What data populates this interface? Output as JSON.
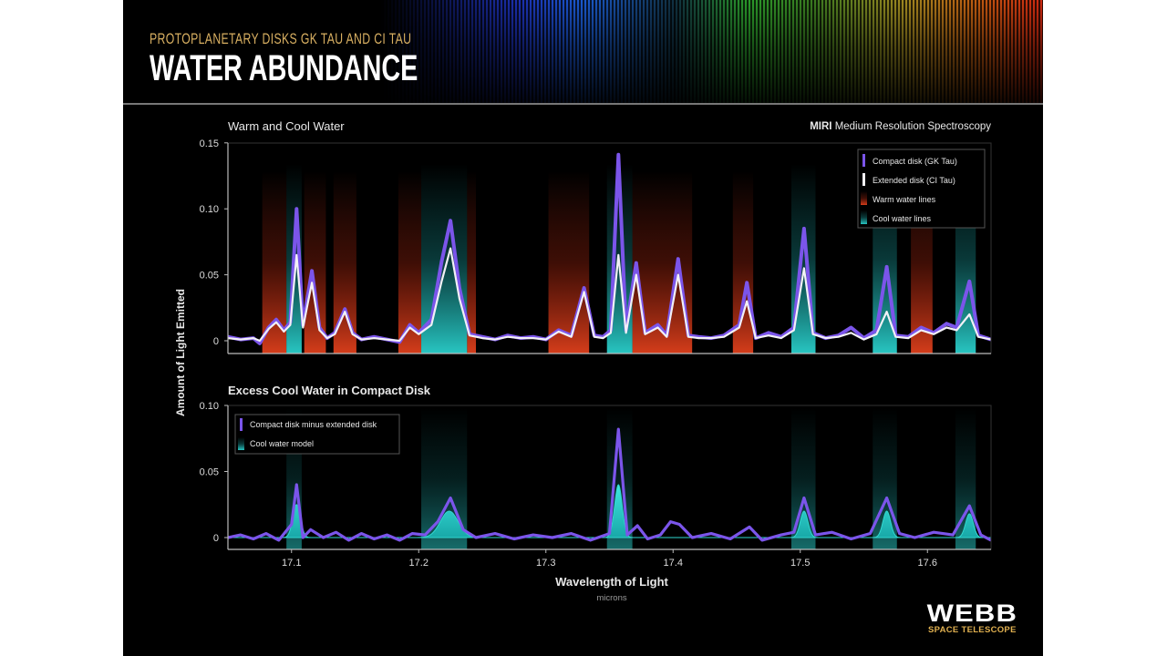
{
  "header": {
    "subtitle": "PROTOPLANETARY DISKS GK TAU AND CI TAU",
    "title": "WATER ABUNDANCE"
  },
  "logo": {
    "name": "WEBB",
    "tagline": "SPACE TELESCOPE"
  },
  "colors": {
    "compact": "#7b55ea",
    "extended": "#f2f0f6",
    "warm": "#d8361a",
    "cool": "#2ad0cc",
    "subtitle": "#d9b062"
  },
  "chart_data": [
    {
      "type": "line",
      "title": "Warm and Cool Water",
      "instrument_bold": "MIRI",
      "instrument_rest": "Medium Resolution Spectroscopy",
      "ylabel": "Amount of Light Emitted",
      "xlim": [
        17.05,
        17.65
      ],
      "ylim": [
        -0.01,
        0.15
      ],
      "yticks": [
        0,
        0.05,
        0.1,
        0.15
      ],
      "ytick_labels": [
        "0",
        "0.05",
        "0.10",
        "0.15"
      ],
      "legend_position": "top-right",
      "legend": [
        "Compact disk (GK Tau)",
        "Extended disk (CI Tau)",
        "Warm water lines",
        "Cool water lines"
      ],
      "warm_bands": [
        [
          17.077,
          17.096
        ],
        [
          17.11,
          17.127
        ],
        [
          17.133,
          17.151
        ],
        [
          17.184,
          17.202
        ],
        [
          17.238,
          17.245
        ],
        [
          17.302,
          17.334
        ],
        [
          17.368,
          17.415
        ],
        [
          17.447,
          17.463
        ],
        [
          17.587,
          17.604
        ]
      ],
      "cool_bands": [
        [
          17.096,
          17.108
        ],
        [
          17.202,
          17.238
        ],
        [
          17.348,
          17.368
        ],
        [
          17.493,
          17.512
        ],
        [
          17.557,
          17.576
        ],
        [
          17.622,
          17.638
        ]
      ],
      "x": [
        17.05,
        17.06,
        17.07,
        17.075,
        17.082,
        17.088,
        17.094,
        17.099,
        17.104,
        17.109,
        17.116,
        17.122,
        17.128,
        17.134,
        17.142,
        17.148,
        17.155,
        17.165,
        17.175,
        17.185,
        17.193,
        17.2,
        17.21,
        17.218,
        17.225,
        17.232,
        17.24,
        17.25,
        17.26,
        17.27,
        17.28,
        17.29,
        17.3,
        17.31,
        17.32,
        17.33,
        17.338,
        17.345,
        17.351,
        17.357,
        17.363,
        17.371,
        17.378,
        17.388,
        17.395,
        17.404,
        17.412,
        17.42,
        17.43,
        17.44,
        17.452,
        17.458,
        17.465,
        17.475,
        17.485,
        17.495,
        17.503,
        17.51,
        17.52,
        17.53,
        17.54,
        17.55,
        17.56,
        17.568,
        17.575,
        17.585,
        17.595,
        17.605,
        17.615,
        17.623,
        17.633,
        17.64,
        17.65
      ],
      "series": [
        {
          "name": "Compact disk (GK Tau)",
          "values": [
            0.003,
            0.001,
            0.002,
            -0.002,
            0.01,
            0.016,
            0.008,
            0.014,
            0.1,
            0.012,
            0.053,
            0.01,
            0.002,
            0.006,
            0.024,
            0.006,
            0.001,
            0.003,
            0.001,
            -0.001,
            0.012,
            0.006,
            0.016,
            0.06,
            0.091,
            0.04,
            0.005,
            0.003,
            0.001,
            0.004,
            0.002,
            0.003,
            0.001,
            0.008,
            0.004,
            0.04,
            0.004,
            0.003,
            0.008,
            0.141,
            0.008,
            0.059,
            0.006,
            0.012,
            0.004,
            0.062,
            0.004,
            0.003,
            0.002,
            0.004,
            0.012,
            0.044,
            0.002,
            0.006,
            0.003,
            0.01,
            0.085,
            0.006,
            0.002,
            0.004,
            0.01,
            0.002,
            0.008,
            0.056,
            0.004,
            0.003,
            0.01,
            0.006,
            0.013,
            0.01,
            0.045,
            0.004,
            0.001
          ]
        },
        {
          "name": "Extended disk (CI Tau)",
          "values": [
            0.002,
            0.001,
            0.002,
            0.0,
            0.009,
            0.014,
            0.007,
            0.012,
            0.065,
            0.01,
            0.044,
            0.008,
            0.002,
            0.005,
            0.022,
            0.005,
            0.001,
            0.002,
            0.001,
            0.0,
            0.01,
            0.005,
            0.012,
            0.045,
            0.07,
            0.032,
            0.004,
            0.002,
            0.001,
            0.003,
            0.002,
            0.002,
            0.001,
            0.007,
            0.003,
            0.037,
            0.003,
            0.002,
            0.006,
            0.065,
            0.006,
            0.05,
            0.005,
            0.01,
            0.003,
            0.05,
            0.003,
            0.002,
            0.002,
            0.003,
            0.01,
            0.03,
            0.002,
            0.004,
            0.002,
            0.008,
            0.055,
            0.005,
            0.002,
            0.003,
            0.006,
            0.001,
            0.005,
            0.022,
            0.003,
            0.002,
            0.008,
            0.005,
            0.01,
            0.008,
            0.02,
            0.003,
            0.001
          ]
        }
      ]
    },
    {
      "type": "line",
      "title": "Excess Cool Water in Compact Disk",
      "xlabel": "Wavelength of Light",
      "xunit": "microns",
      "xlim": [
        17.05,
        17.65
      ],
      "ylim": [
        -0.009,
        0.1
      ],
      "xticks": [
        17.1,
        17.2,
        17.3,
        17.4,
        17.5,
        17.6
      ],
      "xtick_labels": [
        "17.1",
        "17.2",
        "17.3",
        "17.4",
        "17.5",
        "17.6"
      ],
      "yticks": [
        0,
        0.05,
        0.1
      ],
      "ytick_labels": [
        "0",
        "0.05",
        "0.10"
      ],
      "legend_position": "top-left",
      "legend": [
        "Compact disk minus extended disk",
        "Cool water model"
      ],
      "cool_bands": [
        [
          17.096,
          17.108
        ],
        [
          17.202,
          17.238
        ],
        [
          17.348,
          17.368
        ],
        [
          17.493,
          17.512
        ],
        [
          17.557,
          17.576
        ],
        [
          17.622,
          17.638
        ]
      ],
      "difference": {
        "x": [
          17.05,
          17.06,
          17.07,
          17.08,
          17.09,
          17.1,
          17.104,
          17.109,
          17.115,
          17.125,
          17.135,
          17.145,
          17.155,
          17.165,
          17.175,
          17.185,
          17.195,
          17.205,
          17.215,
          17.225,
          17.235,
          17.245,
          17.26,
          17.275,
          17.29,
          17.305,
          17.32,
          17.335,
          17.35,
          17.357,
          17.364,
          17.372,
          17.38,
          17.39,
          17.398,
          17.405,
          17.415,
          17.43,
          17.445,
          17.46,
          17.47,
          17.485,
          17.495,
          17.503,
          17.512,
          17.525,
          17.54,
          17.555,
          17.568,
          17.578,
          17.59,
          17.605,
          17.62,
          17.633,
          17.642,
          17.65
        ],
        "values": [
          0,
          0.002,
          -0.001,
          0.003,
          -0.002,
          0.01,
          0.04,
          0.0,
          0.006,
          0.0,
          0.004,
          -0.002,
          0.003,
          -0.001,
          0.002,
          -0.002,
          0.003,
          0.002,
          0.012,
          0.03,
          0.006,
          0.0,
          0.003,
          -0.001,
          0.002,
          0.0,
          0.003,
          -0.002,
          0.003,
          0.082,
          0.002,
          0.009,
          -0.001,
          0.002,
          0.012,
          0.01,
          0.0,
          0.003,
          -0.001,
          0.008,
          -0.002,
          0.002,
          0.004,
          0.03,
          0.002,
          0.004,
          -0.001,
          0.003,
          0.03,
          0.003,
          0.0,
          0.004,
          0.002,
          0.024,
          0.002,
          -0.002
        ]
      },
      "cool_model_peaks": [
        {
          "center": 17.104,
          "amplitude": 0.025,
          "sigma": 0.003
        },
        {
          "center": 17.224,
          "amplitude": 0.02,
          "sigma": 0.007
        },
        {
          "center": 17.357,
          "amplitude": 0.04,
          "sigma": 0.003
        },
        {
          "center": 17.503,
          "amplitude": 0.02,
          "sigma": 0.003
        },
        {
          "center": 17.568,
          "amplitude": 0.02,
          "sigma": 0.003
        },
        {
          "center": 17.633,
          "amplitude": 0.018,
          "sigma": 0.003
        }
      ]
    }
  ]
}
